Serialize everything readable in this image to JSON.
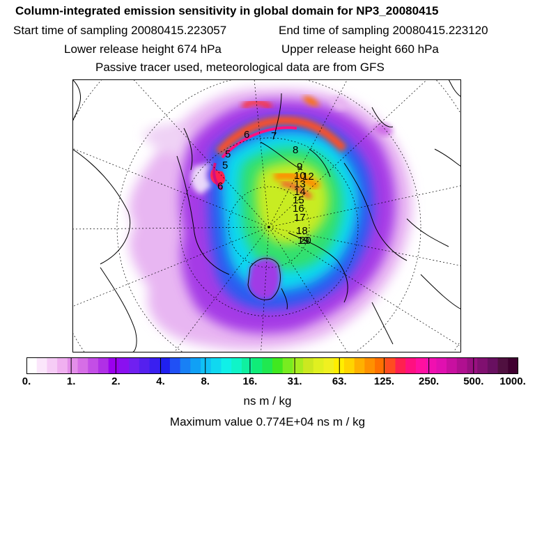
{
  "title": "Column-integrated emission sensitivity in global domain for NP3_20080415",
  "start_label": "Start time of sampling 20080415.223057",
  "end_label": "End time of sampling 20080415.223120",
  "lower_label": "Lower release height  674 hPa",
  "upper_label": "Upper release height  660 hPa",
  "tracer_label": "Passive tracer used, meteorological data are from GFS",
  "units": "ns m / kg",
  "max_label": "Maximum value  0.774E+04 ns m / kg",
  "colorbar": {
    "ticks": [
      "0.",
      "1.",
      "2.",
      "4.",
      "8.",
      "16.",
      "31.",
      "63.",
      "125.",
      "250.",
      "500.",
      "1000."
    ],
    "colors": [
      "#ffffff",
      "#fbe6fb",
      "#f6ccf6",
      "#f0b0f0",
      "#e38ee9",
      "#d66ee6",
      "#c34ee6",
      "#b030e6",
      "#9a00ee",
      "#8a10f0",
      "#7020f0",
      "#5520ee",
      "#3a1ff0",
      "#2020f0",
      "#2050f5",
      "#1880f5",
      "#10a0f5",
      "#10c0f5",
      "#10d8f0",
      "#10f0e8",
      "#10f4c8",
      "#10f0a0",
      "#10ec78",
      "#20e850",
      "#40e820",
      "#78ec20",
      "#a8ec20",
      "#cce820",
      "#e0f020",
      "#f0f020",
      "#ffee00",
      "#ffd400",
      "#ffb000",
      "#ff9000",
      "#ff7000",
      "#ff4c20",
      "#ff2050",
      "#ff1080",
      "#ff10a0",
      "#f010b0",
      "#e010b0",
      "#c810a0",
      "#b01090",
      "#981080",
      "#801070",
      "#681060",
      "#501040",
      "#400030"
    ]
  },
  "contour_labels": [
    "6",
    "5",
    "7",
    "8",
    "9",
    "10",
    "12",
    "13",
    "14",
    "15",
    "16",
    "17",
    "18",
    "19",
    "20",
    "5",
    "6"
  ]
}
